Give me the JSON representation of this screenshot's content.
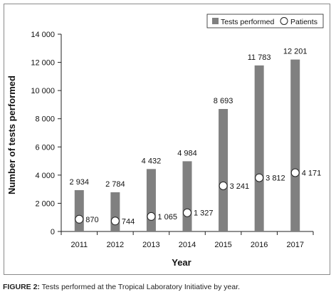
{
  "colors": {
    "bar": "#808080",
    "axis": "#222222",
    "text": "#111111",
    "marker_fill": "#ffffff",
    "marker_stroke": "#222222"
  },
  "caption": {
    "label": "FIGURE 2:",
    "text": "Tests performed at the Tropical Laboratory Initiative by year."
  },
  "chart_data": {
    "type": "bar",
    "title": "",
    "xlabel": "Year",
    "ylabel": "Number of tests performed",
    "ylim": [
      0,
      14000
    ],
    "yticks": [
      0,
      2000,
      4000,
      6000,
      8000,
      10000,
      12000,
      14000
    ],
    "ytick_labels": [
      "0",
      "2 000",
      "4 000",
      "6 000",
      "8 000",
      "10 000",
      "12 000",
      "14 000"
    ],
    "categories": [
      "2011",
      "2012",
      "2013",
      "2014",
      "2015",
      "2016",
      "2017"
    ],
    "legend_position": "top-right",
    "series": [
      {
        "name": "Tests performed",
        "kind": "bar",
        "values": [
          2934,
          2784,
          4432,
          4984,
          8693,
          11783,
          12201
        ],
        "labels": [
          "2 934",
          "2 784",
          "4 432",
          "4 984",
          "8 693",
          "11 783",
          "12 201"
        ]
      },
      {
        "name": "Patients",
        "kind": "marker",
        "values": [
          870,
          744,
          1065,
          1327,
          3241,
          3812,
          4171
        ],
        "labels": [
          "870",
          "744",
          "1 065",
          "1 327",
          "3 241",
          "3 812",
          "4 171"
        ]
      }
    ]
  }
}
